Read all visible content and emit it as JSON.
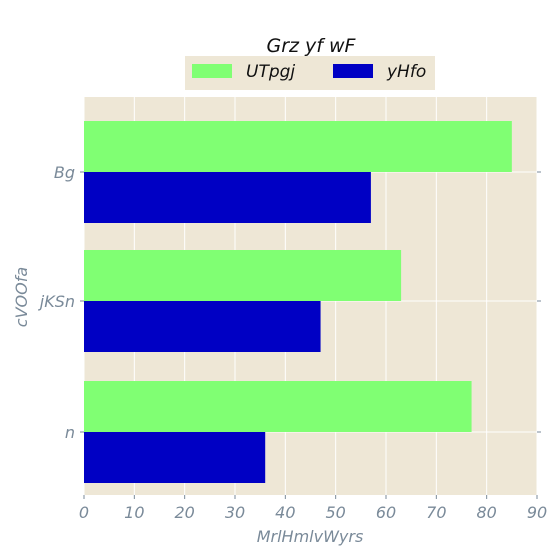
{
  "chart_data": {
    "type": "bar",
    "orientation": "horizontal",
    "title": "Grz yf wF",
    "xlabel": "MrlHmlvWyrs",
    "ylabel": "cVOOfa",
    "categories": [
      "Bg",
      "jKSn",
      "n"
    ],
    "series": [
      {
        "name": "UTpgj",
        "values": [
          85,
          63,
          77
        ],
        "color": "#80ff73"
      },
      {
        "name": "yHfo",
        "values": [
          57,
          47,
          36
        ],
        "color": "#0000c4"
      }
    ],
    "xlim": [
      0,
      90
    ],
    "xticks": [
      "0",
      "10",
      "20",
      "30",
      "40",
      "50",
      "60",
      "70",
      "80",
      "90"
    ],
    "grid": true,
    "legend_position": "top-center",
    "background": "#eee7d6"
  }
}
